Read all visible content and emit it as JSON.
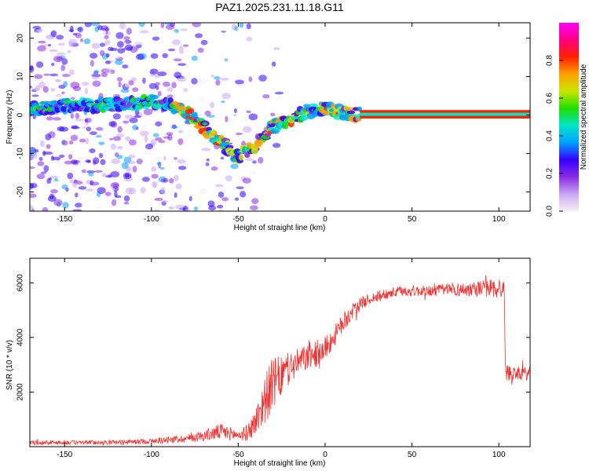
{
  "title": "PAZ1.2025.231.11.18.G11",
  "chart_data": [
    {
      "type": "heatmap",
      "xlabel": "Height of straight line (km)",
      "ylabel": "Frequency (Hz)",
      "xlim": [
        -170,
        118
      ],
      "ylim": [
        -25,
        24
      ],
      "xticks": [
        -150,
        -100,
        -50,
        0,
        50,
        100
      ],
      "xtick_labels": [
        "-150",
        "-100",
        "-50",
        "0",
        "50",
        "100"
      ],
      "yticks": [
        20,
        10,
        0,
        -10,
        -20
      ],
      "ytick_labels": [
        "20",
        "10",
        "0",
        "-10",
        "-20"
      ],
      "ridge": {
        "x": [
          -168,
          -150,
          -130,
          -110,
          -100,
          -90,
          -82,
          -75,
          -68,
          -60,
          -55,
          -50,
          -45,
          -40,
          -35,
          -30,
          -25,
          -20,
          -15,
          -10,
          -5,
          0,
          5,
          10,
          15,
          20,
          118
        ],
        "freq": [
          1.5,
          2.5,
          2.5,
          3,
          3.5,
          3,
          1.5,
          -1,
          -4,
          -7,
          -9,
          -11,
          -9,
          -8,
          -5,
          -3,
          -2,
          -1,
          0,
          1,
          1.5,
          1.5,
          1,
          0.5,
          0.3,
          0.2,
          0.2
        ]
      },
      "colorbar": {
        "label": "Normalized spectral amplitude",
        "ticks": [
          0.0,
          0.2,
          0.4,
          0.6,
          0.8
        ],
        "tick_labels": [
          "0.0",
          "0.2",
          "0.4",
          "0.6",
          "0.8"
        ],
        "range": [
          0,
          1
        ],
        "colors": [
          "#f5f0f5",
          "#c9a8f5",
          "#8b2be2",
          "#3300ff",
          "#00a0ff",
          "#00e6c8",
          "#22dd00",
          "#c8e600",
          "#ffa000",
          "#ff2000",
          "#ff0080",
          "#ff00ff"
        ]
      }
    },
    {
      "type": "line",
      "xlabel": "Height of straight line (km)",
      "ylabel": "SNR (10 * v/v)",
      "xlim": [
        -170,
        118
      ],
      "ylim": [
        0,
        6900
      ],
      "xticks": [
        -150,
        -100,
        -50,
        0,
        50,
        100
      ],
      "xtick_labels": [
        "-150",
        "-100",
        "-50",
        "0",
        "50",
        "100"
      ],
      "yticks": [
        2000,
        4000,
        6000
      ],
      "ytick_labels": [
        "2000",
        "4000",
        "6000"
      ],
      "color": "#ee3333",
      "series": [
        {
          "name": "SNR",
          "x": [
            -170,
            -150,
            -120,
            -100,
            -80,
            -70,
            -60,
            -55,
            -50,
            -45,
            -40,
            -35,
            -30,
            -25,
            -20,
            -15,
            -10,
            -5,
            0,
            5,
            10,
            15,
            20,
            25,
            30,
            35,
            40,
            45,
            50,
            55,
            60,
            70,
            80,
            90,
            95,
            100,
            103,
            104,
            105,
            110,
            118
          ],
          "mean": [
            150,
            150,
            160,
            200,
            300,
            400,
            550,
            480,
            420,
            500,
            900,
            1700,
            2300,
            2600,
            2900,
            3100,
            3300,
            3400,
            3600,
            4000,
            4500,
            4900,
            5200,
            5400,
            5500,
            5600,
            5650,
            5700,
            5700,
            5700,
            5700,
            5750,
            5750,
            5800,
            5800,
            5800,
            5800,
            2700,
            2700,
            2700,
            2650
          ],
          "noise": [
            80,
            80,
            80,
            100,
            150,
            200,
            300,
            250,
            200,
            300,
            500,
            900,
            1000,
            700,
            600,
            500,
            500,
            500,
            450,
            400,
            350,
            300,
            250,
            200,
            200,
            200,
            200,
            200,
            200,
            200,
            200,
            250,
            250,
            300,
            350,
            400,
            400,
            300,
            300,
            250,
            250
          ]
        }
      ]
    }
  ]
}
